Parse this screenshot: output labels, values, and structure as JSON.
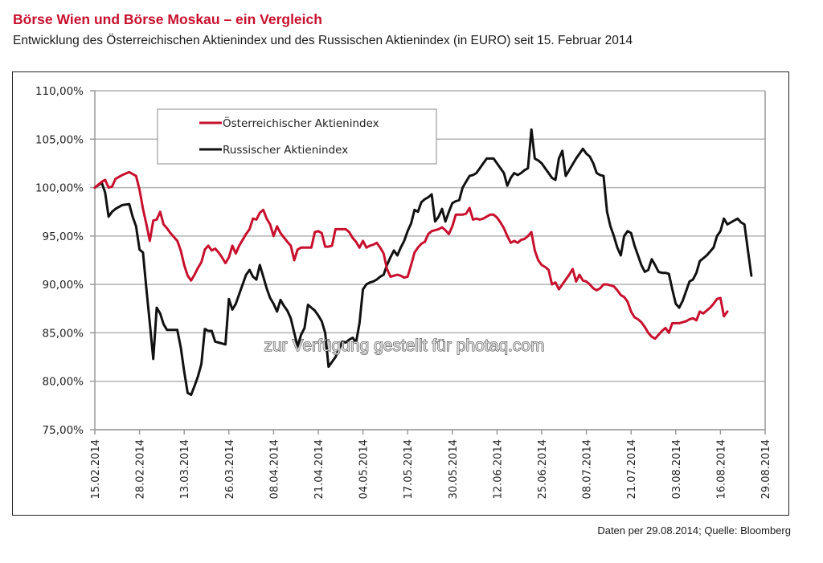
{
  "header": {
    "title": "Börse Wien und Börse Moskau – ein Vergleich",
    "subtitle": "Entwicklung des Österreichischen Aktienindex und des Russischen Aktienindex (in EURO) seit 15. Februar 2014"
  },
  "footer": {
    "source": "Daten per 29.08.2014; Quelle: Bloomberg"
  },
  "watermark": "zur Verfügung gestellt für photaq.com",
  "chart_data": {
    "type": "line",
    "title": "",
    "xlabel": "",
    "ylabel": "",
    "ylim": [
      75,
      110
    ],
    "y_ticks": [
      75,
      80,
      85,
      90,
      95,
      100,
      105,
      110
    ],
    "y_tick_labels": [
      "75,00%",
      "80,00%",
      "85,00%",
      "90,00%",
      "95,00%",
      "100,00%",
      "105,00%",
      "110,00%"
    ],
    "x_tick_labels": [
      "15.02.2014",
      "28.02.2014",
      "13.03.2014",
      "26.03.2014",
      "08.04.2014",
      "21.04.2014",
      "04.05.2014",
      "17.05.2014",
      "30.05.2014",
      "12.06.2014",
      "25.06.2014",
      "08.07.2014",
      "21.07.2014",
      "03.08.2014",
      "16.08.2014",
      "29.08.2014"
    ],
    "x_tick_days": [
      0,
      13,
      26,
      39,
      52,
      65,
      78,
      91,
      104,
      117,
      130,
      143,
      156,
      169,
      182,
      195
    ],
    "xlim_days": [
      0,
      195
    ],
    "grid": "horizontal",
    "legend_position": "top-left",
    "series": [
      {
        "name": "Österreichischer Aktienindex",
        "color": "#c8102e",
        "x_days": [
          0,
          2,
          3,
          4,
          5,
          6,
          7,
          8,
          10,
          12,
          13,
          14,
          15,
          16,
          17,
          18,
          19,
          20,
          21,
          22,
          24,
          25,
          26,
          27,
          28,
          29,
          30,
          31,
          32,
          33,
          34,
          35,
          36,
          37,
          38,
          39,
          40,
          41,
          42,
          43,
          44,
          45,
          46,
          47,
          48,
          49,
          50,
          51,
          52,
          53,
          54,
          56,
          57,
          58,
          59,
          60,
          61,
          62,
          63,
          64,
          65,
          66,
          67,
          68,
          69,
          70,
          72,
          73,
          74,
          75,
          76,
          77,
          78,
          79,
          80,
          81,
          82,
          83,
          84,
          85,
          86,
          87,
          88,
          89,
          90,
          91,
          92,
          93,
          94,
          95,
          96,
          97,
          98,
          99,
          100,
          101,
          102,
          103,
          104,
          105,
          106,
          107,
          108,
          109,
          110,
          111,
          112,
          113,
          114,
          115,
          116,
          117,
          118,
          119,
          120,
          121,
          122,
          123,
          124,
          125,
          126,
          127,
          128,
          129,
          130,
          131,
          132,
          133,
          134,
          135,
          136,
          137,
          138,
          139,
          140,
          141,
          142,
          143,
          144,
          145,
          146,
          147,
          148,
          149,
          150,
          151,
          152,
          153,
          154,
          155,
          156,
          157,
          158,
          159,
          160,
          161,
          162,
          163,
          164,
          165,
          166,
          167,
          168,
          169,
          170,
          171,
          172,
          173,
          174,
          175,
          176,
          177,
          178,
          179,
          180,
          181,
          182,
          183,
          184,
          185,
          186,
          187,
          188,
          189,
          190,
          191,
          192,
          193,
          194,
          195
        ],
        "values": [
          100.0,
          100.6,
          100.8,
          100.0,
          100.1,
          100.9,
          101.1,
          101.3,
          101.6,
          101.2,
          99.8,
          97.8,
          96.2,
          94.5,
          96.6,
          96.7,
          97.5,
          96.2,
          95.8,
          95.3,
          94.5,
          93.5,
          92.0,
          90.9,
          90.4,
          91.0,
          91.7,
          92.3,
          93.6,
          94.0,
          93.5,
          93.7,
          93.3,
          92.8,
          92.2,
          92.8,
          94.0,
          93.2,
          94.0,
          94.6,
          95.2,
          95.7,
          96.8,
          96.7,
          97.4,
          97.7,
          96.8,
          96.2,
          95.0,
          96.0,
          95.3,
          94.4,
          94.0,
          92.5,
          93.6,
          93.8,
          93.8,
          93.8,
          93.8,
          95.4,
          95.5,
          95.3,
          93.9,
          93.9,
          94.0,
          95.7,
          95.7,
          95.7,
          95.4,
          94.8,
          94.4,
          93.8,
          94.5,
          93.8,
          94.0,
          94.1,
          94.3,
          93.8,
          93.2,
          91.6,
          90.8,
          90.9,
          91.0,
          90.9,
          90.7,
          90.8,
          92.0,
          93.3,
          93.8,
          94.2,
          94.4,
          95.2,
          95.5,
          95.6,
          95.7,
          95.9,
          95.6,
          95.2,
          96.0,
          97.2,
          97.2,
          97.2,
          97.3,
          97.9,
          96.7,
          96.8,
          96.7,
          96.8,
          97.0,
          97.2,
          97.2,
          96.9,
          96.4,
          95.8,
          95.0,
          94.3,
          94.5,
          94.3,
          94.6,
          94.7,
          95.0,
          95.4,
          93.5,
          92.5,
          92.0,
          91.8,
          91.5,
          90.0,
          90.2,
          89.5,
          90.0,
          90.5,
          91.0,
          91.6,
          90.3,
          91.0,
          90.4,
          90.3,
          90.0,
          89.6,
          89.4,
          89.6,
          90.0,
          90.0,
          89.9,
          89.8,
          89.4,
          88.9,
          88.7,
          88.2,
          87.2,
          86.6,
          86.4,
          86.1,
          85.6,
          85.0,
          84.6,
          84.4,
          84.8,
          85.2,
          85.5,
          85.0,
          86.0,
          86.0,
          86.0,
          86.1,
          86.2,
          86.4,
          86.5,
          86.3,
          87.2,
          87.0,
          87.3,
          87.6,
          88.0,
          88.5,
          88.6,
          86.7,
          87.2
        ]
      },
      {
        "name": "Russischer Aktienindex",
        "color": "#111111",
        "x_days": [
          0,
          2,
          3,
          4,
          5,
          6,
          7,
          8,
          10,
          11,
          12,
          13,
          14,
          15,
          16,
          17,
          18,
          19,
          20,
          21,
          22,
          23,
          24,
          25,
          26,
          27,
          28,
          29,
          30,
          31,
          32,
          33,
          34,
          35,
          36,
          37,
          38,
          39,
          40,
          41,
          42,
          43,
          44,
          45,
          46,
          47,
          48,
          49,
          50,
          51,
          52,
          53,
          54,
          55,
          56,
          57,
          58,
          59,
          60,
          61,
          62,
          63,
          64,
          65,
          66,
          67,
          68,
          69,
          70,
          71,
          72,
          73,
          74,
          75,
          76,
          77,
          78,
          79,
          80,
          81,
          82,
          83,
          84,
          85,
          86,
          87,
          88,
          89,
          90,
          91,
          92,
          93,
          94,
          95,
          96,
          97,
          98,
          99,
          100,
          101,
          102,
          103,
          104,
          105,
          106,
          107,
          108,
          109,
          110,
          111,
          112,
          113,
          114,
          115,
          116,
          117,
          118,
          119,
          120,
          121,
          122,
          123,
          124,
          125,
          126,
          127,
          128,
          129,
          130,
          131,
          132,
          133,
          134,
          135,
          136,
          137,
          138,
          139,
          140,
          141,
          142,
          143,
          144,
          145,
          146,
          147,
          148,
          149,
          150,
          151,
          152,
          153,
          154,
          155,
          156,
          157,
          158,
          159,
          160,
          161,
          162,
          163,
          164,
          165,
          166,
          167,
          168,
          169,
          170,
          171,
          172,
          173,
          174,
          175,
          176,
          177,
          178,
          179,
          180,
          181,
          182,
          183,
          184,
          185,
          186,
          187,
          188,
          189,
          190,
          191,
          192,
          193,
          194,
          195
        ],
        "values": [
          100.0,
          100.5,
          99.5,
          97.0,
          97.5,
          97.8,
          98.0,
          98.2,
          98.3,
          97.0,
          96.0,
          93.6,
          93.3,
          89.5,
          86.0,
          82.3,
          87.6,
          87.0,
          85.9,
          85.3,
          85.3,
          85.3,
          85.3,
          83.5,
          81.0,
          78.8,
          78.6,
          79.5,
          80.5,
          81.8,
          85.4,
          85.2,
          85.2,
          84.1,
          84.0,
          83.9,
          83.8,
          88.5,
          87.4,
          88.0,
          89.0,
          90.0,
          91.0,
          91.5,
          90.8,
          90.5,
          92.0,
          90.8,
          89.6,
          88.6,
          88.0,
          87.2,
          88.4,
          87.8,
          87.3,
          86.5,
          85.0,
          83.6,
          84.8,
          85.5,
          87.9,
          87.6,
          87.3,
          86.8,
          86.2,
          85.0,
          81.5,
          82.0,
          82.5,
          83.3,
          84.1,
          84.0,
          84.3,
          84.5,
          84.0,
          86.0,
          89.5,
          90.0,
          90.2,
          90.3,
          90.5,
          90.8,
          91.0,
          92.0,
          92.8,
          93.5,
          93.0,
          93.8,
          94.5,
          95.5,
          96.3,
          97.7,
          97.5,
          98.5,
          98.8,
          99.0,
          99.3,
          96.5,
          97.0,
          97.8,
          96.5,
          97.5,
          98.4,
          98.6,
          98.7,
          100.0,
          100.6,
          101.2,
          101.3,
          101.5,
          102.0,
          102.5,
          103.0,
          103.0,
          103.0,
          102.5,
          102.0,
          101.5,
          100.2,
          101.0,
          101.5,
          101.3,
          101.5,
          101.8,
          102.0,
          106.0,
          103.0,
          102.8,
          102.5,
          102.0,
          101.5,
          101.0,
          100.8,
          103.0,
          103.8,
          101.2,
          101.8,
          102.4,
          103.0,
          103.5,
          104.0,
          103.5,
          103.2,
          102.5,
          101.5,
          101.3,
          101.2,
          97.5,
          96.0,
          95.0,
          93.8,
          93.0,
          95.0,
          95.5,
          95.3,
          94.0,
          93.0,
          92.0,
          91.3,
          91.5,
          92.6,
          92.0,
          91.3,
          91.2,
          91.2,
          91.1,
          89.5,
          88.0,
          87.6,
          88.3,
          89.3,
          90.3,
          90.5,
          91.2,
          92.4,
          92.7,
          93.0,
          93.4,
          93.8,
          95.0,
          95.5,
          96.8,
          96.2,
          96.4,
          96.6,
          96.8,
          96.4,
          96.2,
          93.5,
          90.9
        ]
      }
    ]
  }
}
